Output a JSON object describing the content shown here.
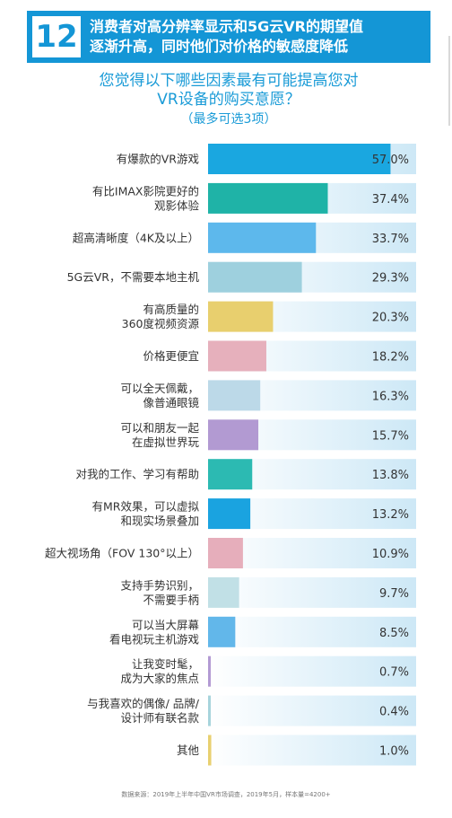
{
  "header": {
    "number": "12",
    "title": "消费者对高分辨率显示和5G云VR的期望值\n逐渐升高，同时他们对价格的敏感度降低"
  },
  "question": {
    "text": "您觉得以下哪些因素最有可能提高您对\nVR设备的购买意愿？",
    "note": "（最多可选3项）"
  },
  "source": "数据来源：2019年上半年中国VR市场调查，2019年5月，样本量=4200+",
  "chart_data": {
    "type": "bar",
    "orientation": "horizontal",
    "unit": "%",
    "xlim": [
      0,
      65
    ],
    "categories": [
      "有爆款的VR游戏",
      "有比IMAX影院更好的\n观影体验",
      "超高清晰度（4K及以上）",
      "5G云VR，不需要本地主机",
      "有高质量的\n360度视频资源",
      "价格更便宜",
      "可以全天佩戴，\n像普通眼镜",
      "可以和朋友一起\n在虚拟世界玩",
      "对我的工作、学习有帮助",
      "有MR效果，可以虚拟\n和现实场景叠加",
      "超大视场角（FOV 130°以上）",
      "支持手势识别，\n不需要手柄",
      "可以当大屏幕\n看电视玩主机游戏",
      "让我变时髦，\n成为大家的焦点",
      "与我喜欢的偶像/ 品牌/\n设计师有联名款",
      "其他"
    ],
    "values": [
      57.0,
      37.4,
      33.7,
      29.3,
      20.3,
      18.2,
      16.3,
      15.7,
      13.8,
      13.2,
      10.9,
      9.7,
      8.5,
      0.7,
      0.4,
      1.0
    ],
    "value_labels": [
      "57.0%",
      "37.4%",
      "33.7%",
      "29.3%",
      "20.3%",
      "18.2%",
      "16.3%",
      "15.7%",
      "13.8%",
      "13.2%",
      "10.9%",
      "9.7%",
      "8.5%",
      "0.7%",
      "0.4%",
      "1.0%"
    ],
    "bar_colors": [
      "#1aa7e0",
      "#1fb3a7",
      "#5db8ec",
      "#9ed0de",
      "#e8cf6e",
      "#e6b0bc",
      "#bcd9e8",
      "#b29ad2",
      "#2cbab2",
      "#1aa3e0",
      "#e6aebb",
      "#c1e0e6",
      "#62b7ea",
      "#b39ad3",
      "#a7d4dc",
      "#e8d070"
    ],
    "track_gradient": [
      "#ffffff",
      "#cde8f6"
    ]
  }
}
